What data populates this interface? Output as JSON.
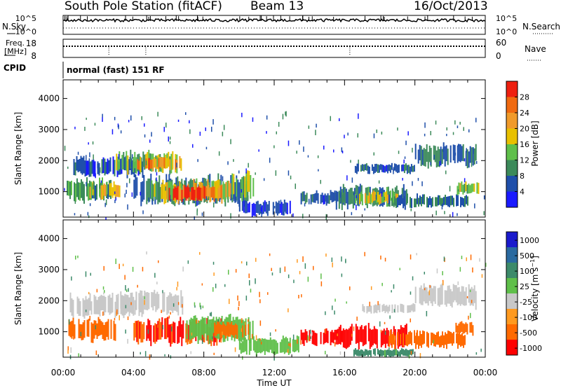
{
  "header": {
    "station": "South Pole Station (fitACF)",
    "beam": "Beam 13",
    "date": "16/Oct/2013"
  },
  "params": {
    "nsky_label": "N.Sky",
    "nsky_ticks": [
      "10^5",
      "10^0"
    ],
    "nsearch_label": "N.Search",
    "nsearch_ticks": [
      "10^5",
      "10^0"
    ],
    "freq_label_1": "Freq.",
    "freq_label_2": "[MHz]",
    "freq_ticks": [
      "18",
      "8"
    ],
    "nave_label": "Nave",
    "nave_ticks": [
      "60",
      "0"
    ],
    "cpid_label": "CPID",
    "cpid_text": "normal (fast) 151 RF"
  },
  "colors": {
    "power": [
      "#1a1aff",
      "#1f4faa",
      "#3c8a5a",
      "#5fbf4a",
      "#e8c000",
      "#f09a2a",
      "#f06a10",
      "#ee2010"
    ],
    "velocity": [
      "#ff0000",
      "#ff6a00",
      "#ff9a20",
      "#c8c8c8",
      "#5fbf4a",
      "#3c8a6a",
      "#2a6aa0",
      "#1a1acc"
    ]
  },
  "chart_data": [
    {
      "type": "heatmap",
      "name": "power",
      "ylabel": "Slant Range [km]",
      "y_ticks": [
        1000,
        2000,
        3000,
        4000
      ],
      "ylim": [
        180,
        4600
      ],
      "xlim": [
        0,
        24
      ],
      "colorbar_label": "Power [dB]",
      "colorbar_ticks": [
        4,
        8,
        12,
        16,
        20,
        24,
        28
      ],
      "colorbar_range": [
        0,
        32
      ],
      "regions": [
        {
          "t0": 0.2,
          "t1": 2.8,
          "r0": 700,
          "r1": 1400,
          "value": 10
        },
        {
          "t0": 1.5,
          "t1": 3.2,
          "r0": 800,
          "r1": 1300,
          "value": 18
        },
        {
          "t0": 0.5,
          "t1": 4.5,
          "r0": 1500,
          "r1": 2100,
          "value": 6
        },
        {
          "t0": 3.0,
          "t1": 6.5,
          "r0": 1600,
          "r1": 2300,
          "value": 14
        },
        {
          "t0": 4.2,
          "t1": 6.8,
          "r0": 1700,
          "r1": 2100,
          "value": 22
        },
        {
          "t0": 4.0,
          "t1": 10.5,
          "r0": 600,
          "r1": 1500,
          "value": 8
        },
        {
          "t0": 5.0,
          "t1": 9.5,
          "r0": 650,
          "r1": 1350,
          "value": 17
        },
        {
          "t0": 6.0,
          "t1": 9.0,
          "r0": 700,
          "r1": 1200,
          "value": 28
        },
        {
          "t0": 9.5,
          "t1": 10.8,
          "r0": 800,
          "r1": 1700,
          "value": 16
        },
        {
          "t0": 10.0,
          "t1": 13.0,
          "r0": 250,
          "r1": 700,
          "value": 4
        },
        {
          "t0": 13.5,
          "t1": 16.0,
          "r0": 600,
          "r1": 1000,
          "value": 6
        },
        {
          "t0": 15.5,
          "t1": 19.5,
          "r0": 500,
          "r1": 1200,
          "value": 9
        },
        {
          "t0": 16.5,
          "t1": 19.0,
          "r0": 600,
          "r1": 1000,
          "value": 18
        },
        {
          "t0": 18.5,
          "t1": 23.0,
          "r0": 500,
          "r1": 900,
          "value": 7
        },
        {
          "t0": 16.5,
          "t1": 20.0,
          "r0": 1600,
          "r1": 1900,
          "value": 6
        },
        {
          "t0": 20.0,
          "t1": 23.5,
          "r0": 1800,
          "r1": 2500,
          "value": 8
        },
        {
          "t0": 22.3,
          "t1": 23.6,
          "r0": 900,
          "r1": 1300,
          "value": 16
        }
      ]
    },
    {
      "type": "heatmap",
      "name": "velocity",
      "ylabel": "Slant Range [km]",
      "xlabel": "Time UT",
      "x_ticks": [
        "00:00",
        "04:00",
        "08:00",
        "12:00",
        "16:00",
        "20:00",
        "00:00"
      ],
      "y_ticks": [
        1000,
        2000,
        3000,
        4000
      ],
      "ylim": [
        180,
        4600
      ],
      "xlim": [
        0,
        24
      ],
      "colorbar_label": "Velocity [m s^-1]",
      "colorbar_ticks": [
        "1000",
        "500",
        "100",
        "25",
        "-25",
        "-100",
        "-500",
        "-1000"
      ],
      "regions": [
        {
          "t0": 0.3,
          "t1": 3.0,
          "r0": 700,
          "r1": 1400,
          "value": -400
        },
        {
          "t0": 0.3,
          "t1": 4.5,
          "r0": 1500,
          "r1": 2200,
          "value": 0
        },
        {
          "t0": 3.0,
          "t1": 6.8,
          "r0": 1600,
          "r1": 2300,
          "value": 10
        },
        {
          "t0": 4.0,
          "t1": 9.0,
          "r0": 600,
          "r1": 1400,
          "value": -500
        },
        {
          "t0": 7.0,
          "t1": 10.8,
          "r0": 700,
          "r1": 1500,
          "value": 50
        },
        {
          "t0": 8.5,
          "t1": 10.5,
          "r0": 800,
          "r1": 1300,
          "value": -300
        },
        {
          "t0": 10.0,
          "t1": 13.5,
          "r0": 250,
          "r1": 800,
          "value": 80
        },
        {
          "t0": 13.5,
          "t1": 16.0,
          "r0": 600,
          "r1": 1100,
          "value": -700
        },
        {
          "t0": 15.5,
          "t1": 19.5,
          "r0": 500,
          "r1": 1200,
          "value": -800
        },
        {
          "t0": 16.5,
          "t1": 20.0,
          "r0": 200,
          "r1": 450,
          "value": 120
        },
        {
          "t0": 18.5,
          "t1": 23.0,
          "r0": 500,
          "r1": 1000,
          "value": -400
        },
        {
          "t0": 17.0,
          "t1": 20.0,
          "r0": 1600,
          "r1": 1900,
          "value": 10
        },
        {
          "t0": 20.0,
          "t1": 23.6,
          "r0": 1800,
          "r1": 2500,
          "value": 0
        },
        {
          "t0": 22.3,
          "t1": 23.6,
          "r0": 900,
          "r1": 1300,
          "value": -200
        }
      ]
    }
  ]
}
